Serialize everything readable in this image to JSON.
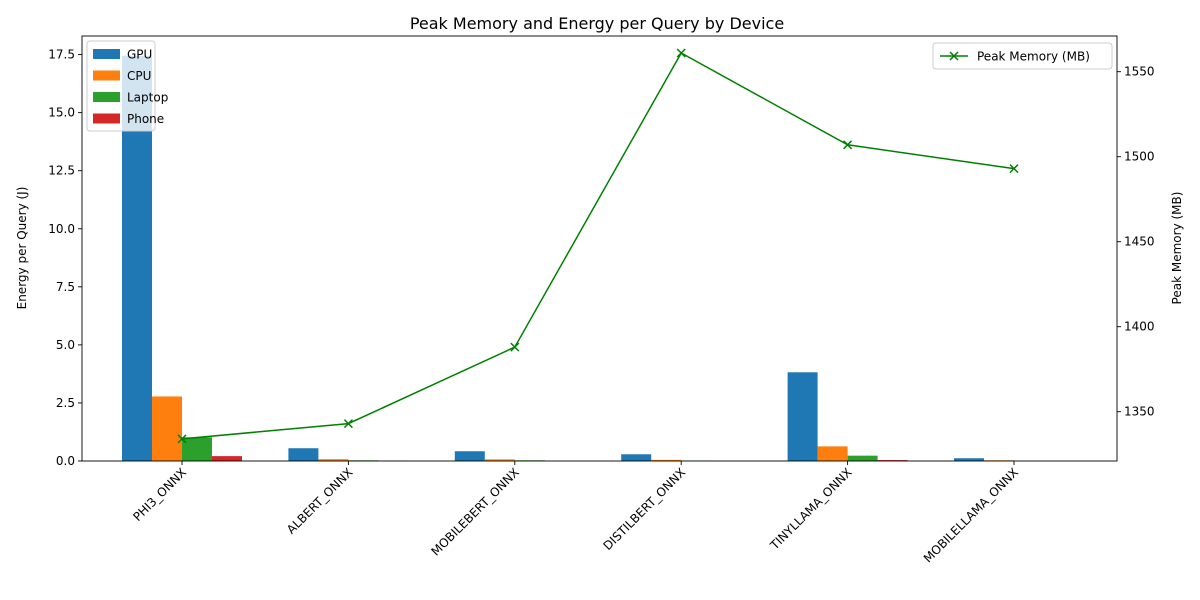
{
  "chart_data": {
    "type": "bar",
    "title": "Peak Memory and Energy per Query by Device",
    "xlabel": "",
    "ylabel": "Energy per Query (J)",
    "y2label": "Peak Memory (MB)",
    "categories": [
      "PHI3_ONNX",
      "ALBERT_ONNX",
      "MOBILEBERT_ONNX",
      "DISTILBERT_ONNX",
      "TINYLLAMA_ONNX",
      "MOBILELLAMA_ONNX"
    ],
    "ylim": [
      0,
      18.3
    ],
    "yticks": [
      "0.0",
      "2.5",
      "5.0",
      "7.5",
      "10.0",
      "12.5",
      "15.0",
      "17.5"
    ],
    "y2lim": [
      1321,
      1571
    ],
    "y2ticks": [
      "1350",
      "1400",
      "1450",
      "1500",
      "1550"
    ],
    "series": [
      {
        "name": "GPU",
        "color": "#1f77b4",
        "values": [
          17.45,
          0.55,
          0.42,
          0.29,
          3.82,
          0.12
        ]
      },
      {
        "name": "CPU",
        "color": "#ff7f0e",
        "values": [
          2.78,
          0.08,
          0.07,
          0.05,
          0.63,
          0.03
        ]
      },
      {
        "name": "Laptop",
        "color": "#2ca02c",
        "values": [
          1.02,
          0.03,
          0.03,
          0.02,
          0.23,
          0.0
        ]
      },
      {
        "name": "Phone",
        "color": "#d62728",
        "values": [
          0.21,
          0.01,
          0.0,
          0.0,
          0.04,
          0.0
        ]
      }
    ],
    "line": {
      "name": "Peak Memory (MB)",
      "color": "#008000",
      "marker": "x",
      "values": [
        1334,
        1343,
        1388,
        1561,
        1507,
        1493
      ]
    },
    "legend_bars": "top-left",
    "legend_line": "top-right",
    "grid": false
  }
}
